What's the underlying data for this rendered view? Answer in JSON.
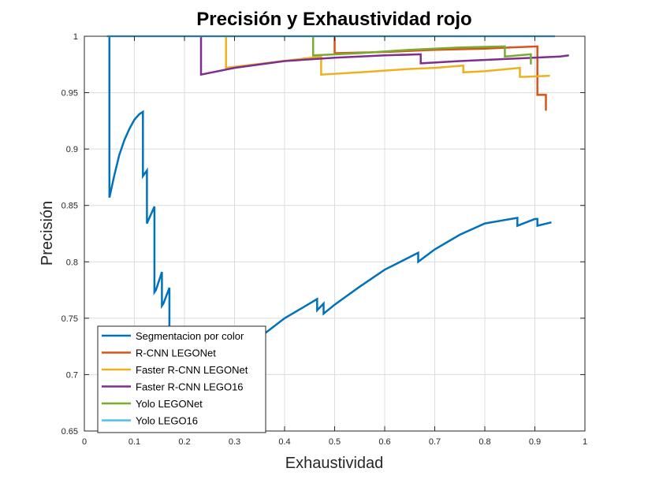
{
  "chart_data": {
    "type": "line",
    "title": "Precisión y Exhaustividad rojo",
    "xlabel": "Exhaustividad",
    "ylabel": "Precisión",
    "xlim": [
      0,
      1
    ],
    "ylim": [
      0.65,
      1
    ],
    "xticks": [
      "0",
      "0.1",
      "0.2",
      "0.3",
      "0.4",
      "0.5",
      "0.6",
      "0.7",
      "0.8",
      "0.9",
      "1"
    ],
    "yticks": [
      "0.65",
      "0.7",
      "0.75",
      "0.8",
      "0.85",
      "0.9",
      "0.95",
      "1"
    ],
    "grid": true,
    "legend_position": "bottom-left",
    "series": [
      {
        "name": "Segmentacion por color",
        "color": "#0072BD",
        "x": [
          0.05,
          0.05,
          0.05,
          0.06,
          0.07,
          0.08,
          0.09,
          0.1,
          0.11,
          0.117,
          0.117,
          0.125,
          0.125,
          0.127,
          0.14,
          0.14,
          0.143,
          0.155,
          0.155,
          0.158,
          0.17,
          0.17,
          0.172,
          0.2,
          0.25,
          0.3,
          0.35,
          0.4,
          0.45,
          0.465,
          0.465,
          0.478,
          0.478,
          0.5,
          0.55,
          0.6,
          0.667,
          0.667,
          0.7,
          0.75,
          0.8,
          0.865,
          0.865,
          0.9,
          0.905,
          0.905,
          0.933
        ],
        "y": [
          1.0,
          0.999,
          0.857,
          0.877,
          0.895,
          0.908,
          0.918,
          0.926,
          0.931,
          0.933,
          0.876,
          0.881,
          0.834,
          0.836,
          0.849,
          0.773,
          0.775,
          0.791,
          0.761,
          0.763,
          0.777,
          0.66,
          0.658,
          0.662,
          0.683,
          0.71,
          0.733,
          0.75,
          0.763,
          0.767,
          0.757,
          0.763,
          0.754,
          0.762,
          0.778,
          0.793,
          0.808,
          0.8,
          0.811,
          0.824,
          0.834,
          0.839,
          0.832,
          0.838,
          0.838,
          0.832,
          0.835
        ]
      },
      {
        "name": "R-CNN LEGONet",
        "color": "#D95319",
        "x": [
          0.5,
          0.5,
          0.6,
          0.7,
          0.8,
          0.85,
          0.905,
          0.905,
          0.922,
          0.922
        ],
        "y": [
          1.0,
          0.985,
          0.986,
          0.988,
          0.989,
          0.99,
          0.991,
          0.948,
          0.948,
          0.934
        ]
      },
      {
        "name": "Faster R-CNN LEGONet",
        "color": "#EDB120",
        "x": [
          0.283,
          0.283,
          0.473,
          0.473,
          0.55,
          0.65,
          0.7,
          0.757,
          0.757,
          0.8,
          0.87,
          0.87,
          0.88,
          0.93
        ],
        "y": [
          1.0,
          0.972,
          0.982,
          0.966,
          0.968,
          0.971,
          0.972,
          0.974,
          0.968,
          0.969,
          0.972,
          0.964,
          0.964,
          0.965
        ]
      },
      {
        "name": "Faster R-CNN LEGO16",
        "color": "#7E2F8E",
        "x": [
          0.233,
          0.233,
          0.3,
          0.4,
          0.5,
          0.6,
          0.672,
          0.672,
          0.75,
          0.85,
          0.95,
          0.968
        ],
        "y": [
          1.0,
          0.966,
          0.972,
          0.978,
          0.981,
          0.983,
          0.984,
          0.976,
          0.978,
          0.98,
          0.982,
          0.983
        ]
      },
      {
        "name": "Yolo LEGONet",
        "color": "#77AC30",
        "x": [
          0.457,
          0.457,
          0.55,
          0.65,
          0.75,
          0.84,
          0.84,
          0.892,
          0.892
        ],
        "y": [
          1.0,
          0.983,
          0.985,
          0.988,
          0.99,
          0.991,
          0.982,
          0.984,
          0.975
        ]
      },
      {
        "name": "Yolo LEGO16",
        "color": "#4DBEEE",
        "x": [
          0.045,
          0.94
        ],
        "y": [
          1.0,
          1.0
        ]
      }
    ]
  }
}
